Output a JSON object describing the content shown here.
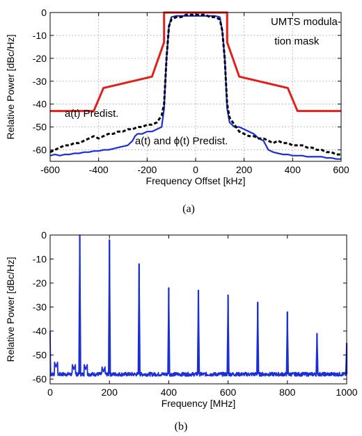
{
  "chart_data": [
    {
      "id": "a",
      "type": "line",
      "caption": "(a)",
      "xlabel": "Frequency Offset [kHz]",
      "ylabel": "Relative Power [dBc/Hz]",
      "xlim": [
        -600,
        600
      ],
      "ylim": [
        -65,
        0
      ],
      "xticks": [
        -600,
        -400,
        -200,
        0,
        200,
        400,
        600
      ],
      "yticks": [
        0,
        -10,
        -20,
        -30,
        -40,
        -50,
        -60
      ],
      "grid": true,
      "annotations": [
        {
          "id": "mask",
          "text": "UMTS modula-",
          "x": 310,
          "y": -5.5
        },
        {
          "id": "mask2",
          "text": "tion mask",
          "x": 325,
          "y": -14
        },
        {
          "id": "apd",
          "text": "a(t) Predist.",
          "x": -540,
          "y": -45.5
        },
        {
          "id": "aphipd",
          "text": "a(t) and ϕ(t) Predist.",
          "x": -250,
          "y": -57.5
        }
      ],
      "series": [
        {
          "key": "mask",
          "color": "#e0201b",
          "width": 3,
          "dash": "",
          "x": [
            -600,
            -420,
            -380,
            -180,
            -130,
            -130,
            130,
            130,
            180,
            380,
            420,
            600
          ],
          "y": [
            -43,
            -43,
            -33,
            -28,
            -13,
            0,
            0,
            -13,
            -28,
            -33,
            -43,
            -43
          ]
        },
        {
          "key": "a_predist",
          "color": "#000000",
          "width": 3,
          "dash": "5 3",
          "x": [
            -600,
            -580,
            -560,
            -540,
            -520,
            -500,
            -480,
            -460,
            -440,
            -420,
            -400,
            -380,
            -360,
            -340,
            -320,
            -300,
            -280,
            -260,
            -240,
            -220,
            -200,
            -180,
            -160,
            -140,
            -130,
            -125,
            -120,
            -110,
            -100,
            -80,
            -60,
            -40,
            -20,
            0,
            20,
            40,
            60,
            80,
            100,
            110,
            120,
            125,
            130,
            140,
            160,
            180,
            200,
            220,
            240,
            260,
            280,
            300,
            320,
            340,
            360,
            380,
            400,
            420,
            440,
            460,
            480,
            500,
            520,
            540,
            560,
            580,
            600
          ],
          "y": [
            -61,
            -60,
            -59,
            -58,
            -58,
            -57,
            -57,
            -56,
            -55,
            -54,
            -55,
            -54,
            -53,
            -53,
            -52,
            -52,
            -51,
            -51,
            -50,
            -50,
            -49,
            -49,
            -48,
            -45,
            -40,
            -30,
            -20,
            -6,
            -3,
            -2,
            -2,
            -1,
            -1,
            -1,
            -1,
            -1,
            -2,
            -2,
            -3,
            -8,
            -20,
            -30,
            -40,
            -46,
            -49,
            -52,
            -53,
            -54,
            -54,
            -55,
            -55,
            -56,
            -57,
            -56,
            -57,
            -57,
            -58,
            -58,
            -58,
            -59,
            -59,
            -60,
            -60,
            -61,
            -61,
            -62,
            -62
          ]
        },
        {
          "key": "a_phi_predist",
          "color": "#1a2fd6",
          "width": 2.2,
          "dash": "",
          "x": [
            -600,
            -580,
            -560,
            -540,
            -520,
            -500,
            -480,
            -460,
            -440,
            -420,
            -400,
            -380,
            -360,
            -340,
            -320,
            -300,
            -280,
            -260,
            -250,
            -240,
            -220,
            -200,
            -180,
            -160,
            -140,
            -130,
            -125,
            -120,
            -110,
            -100,
            -80,
            -60,
            -40,
            -20,
            0,
            20,
            40,
            60,
            80,
            100,
            110,
            120,
            125,
            130,
            140,
            160,
            180,
            200,
            220,
            240,
            260,
            280,
            290,
            300,
            320,
            340,
            360,
            380,
            400,
            420,
            440,
            460,
            480,
            500,
            520,
            540,
            560,
            580,
            600
          ],
          "y": [
            -62.5,
            -62,
            -62.5,
            -62,
            -62,
            -61.5,
            -61.5,
            -61,
            -61,
            -60.5,
            -60.5,
            -60,
            -60,
            -59.5,
            -59,
            -58.5,
            -58,
            -56,
            -54,
            -53,
            -53,
            -52,
            -52,
            -51,
            -50,
            -42,
            -30,
            -20,
            -6,
            -2,
            -1.5,
            -1.5,
            -1.5,
            -1.5,
            -1.5,
            -1.5,
            -1.5,
            -1.5,
            -1.5,
            -2,
            -8,
            -20,
            -30,
            -42,
            -48,
            -50,
            -50,
            -51,
            -52,
            -53,
            -55,
            -56,
            -58,
            -60,
            -61,
            -61.5,
            -62,
            -62,
            -62.5,
            -62.5,
            -62.5,
            -63,
            -63,
            -63,
            -63,
            -63.5,
            -63.5,
            -64,
            -64
          ]
        }
      ]
    },
    {
      "id": "b",
      "type": "line",
      "caption": "(b)",
      "xlabel": "Frequency  [MHz]",
      "ylabel": "Relative Power [dBc/Hz]",
      "xlim": [
        0,
        1000
      ],
      "ylim": [
        -62,
        0
      ],
      "xticks": [
        0,
        200,
        400,
        600,
        800,
        1000
      ],
      "yticks": [
        0,
        -10,
        -20,
        -30,
        -40,
        -50,
        -60
      ],
      "grid": false,
      "baseline_floor": -58,
      "peaks": [
        {
          "f": 100,
          "level": 0
        },
        {
          "f": 200,
          "level": -2
        },
        {
          "f": 300,
          "level": -12
        },
        {
          "f": 400,
          "level": -22
        },
        {
          "f": 500,
          "level": -23
        },
        {
          "f": 600,
          "level": -25
        },
        {
          "f": 700,
          "level": -28
        },
        {
          "f": 800,
          "level": -32
        },
        {
          "f": 900,
          "level": -41
        },
        {
          "f": 1000,
          "level": -45
        }
      ],
      "minor_peaks": [
        {
          "f": 20,
          "level": -55
        },
        {
          "f": 80,
          "level": -56
        },
        {
          "f": 120,
          "level": -56
        },
        {
          "f": 180,
          "level": -57
        }
      ],
      "series": [
        {
          "key": "spectrum",
          "color": "#1a2fd6",
          "width": 1.8
        }
      ]
    }
  ]
}
